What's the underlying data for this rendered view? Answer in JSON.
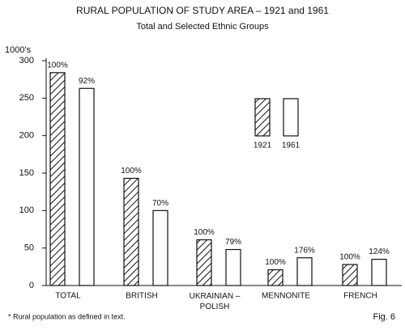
{
  "chart_data": {
    "type": "bar",
    "title": "RURAL POPULATION OF STUDY AREA – 1921 and 1961",
    "subtitle": "Total and Selected Ethnic Groups",
    "y_label": "1000's",
    "categories": [
      "TOTAL",
      "BRITISH",
      "UKRAINIAN –\nPOLISH",
      "MENNONITE",
      "FRENCH"
    ],
    "series": [
      {
        "name": "1921",
        "color": "#222222",
        "hatch": true,
        "values": [
          284,
          143,
          61,
          21,
          28
        ],
        "labels": [
          "100%",
          "100%",
          "100%",
          "100%",
          "100%"
        ]
      },
      {
        "name": "1961",
        "color": "#ffffff",
        "hatch": false,
        "values": [
          263,
          100,
          48,
          37,
          35
        ],
        "labels": [
          "92%",
          "70%",
          "79%",
          "176%",
          "124%"
        ]
      }
    ],
    "ylim": [
      0,
      300
    ],
    "yticks": [
      0,
      50,
      100,
      150,
      200,
      250,
      300
    ],
    "footnote": "* Rural population as defined in text.",
    "figure_label": "Fig. 6"
  }
}
